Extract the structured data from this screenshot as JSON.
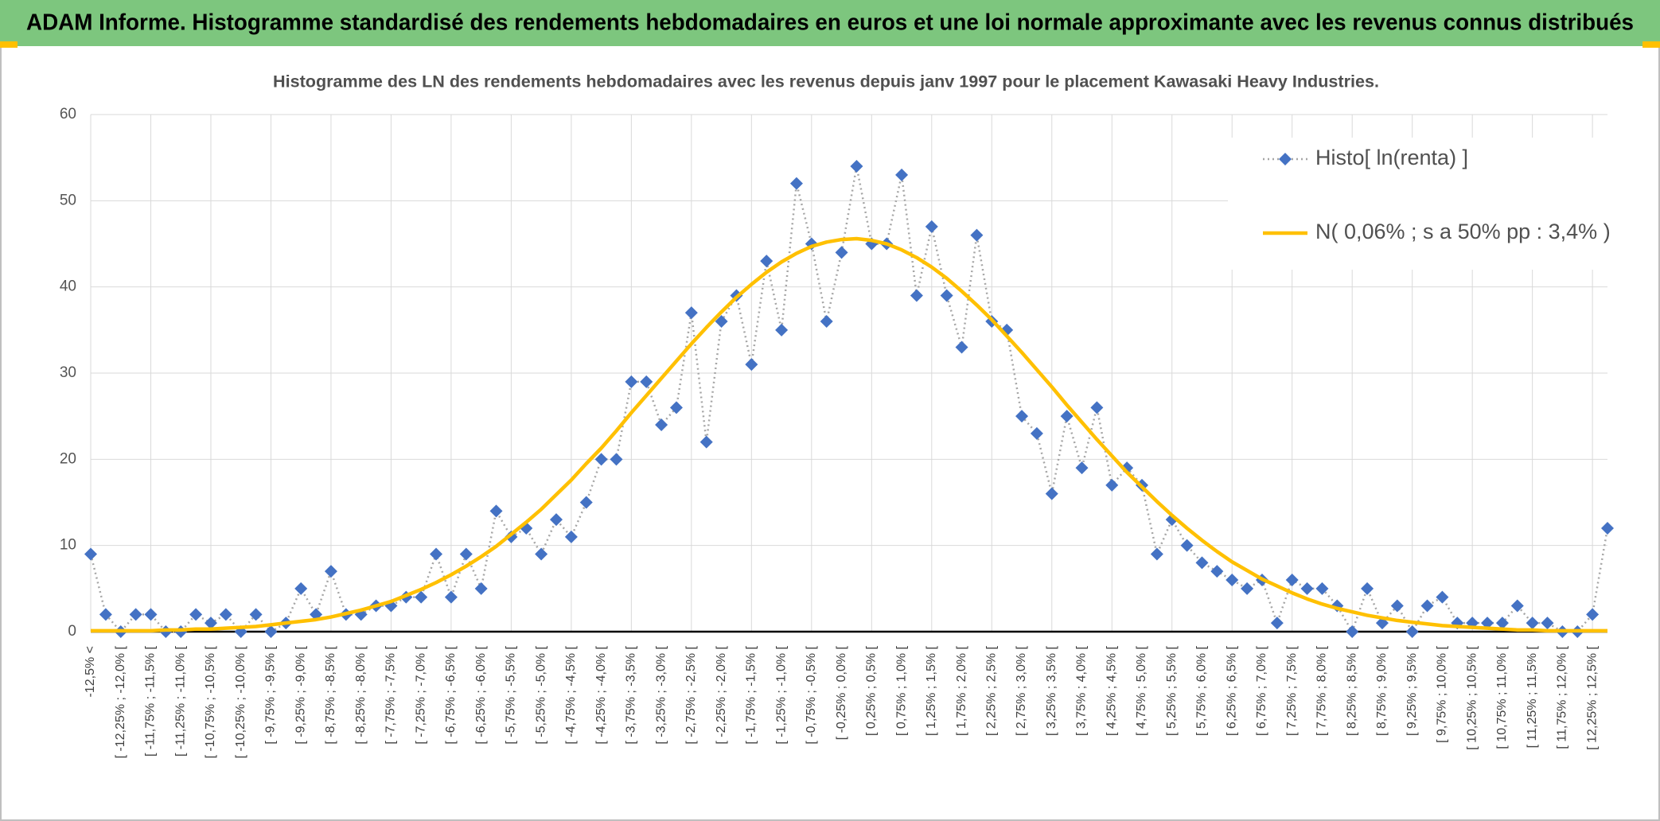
{
  "header": {
    "title": "ADAM Informe. Histogramme standardisé des rendements hebdomadaires en euros et une loi normale approximante avec les revenus connus distribués"
  },
  "chart_data": {
    "type": "line",
    "title": "Histogramme des LN des rendements hebdomadaires avec les revenus depuis janv 1997 pour le placement Kawasaki Heavy Industries.",
    "categories": [
      "-12,5% <",
      null,
      "[ -12,25% ; -12,0% [",
      null,
      "[ -11,75% ; -11,5% [",
      null,
      "[ -11,25% ; -11,0% [",
      null,
      "[ -10,75% ; -10,5% [",
      null,
      "[ -10,25% ; -10,0% [",
      null,
      "[ -9,75% ; -9,5% [",
      null,
      "[ -9,25% ; -9,0% [",
      null,
      "[ -8,75% ; -8,5% [",
      null,
      "[ -8,25% ; -8,0% [",
      null,
      "[ -7,75% ; -7,5% [",
      null,
      "[ -7,25% ; -7,0% [",
      null,
      "[ -6,75% ; -6,5% [",
      null,
      "[ -6,25% ; -6,0% [",
      null,
      "[ -5,75% ; -5,5% [",
      null,
      "[ -5,25% ; -5,0% [",
      null,
      "[ -4,75% ; -4,5% [",
      null,
      "[ -4,25% ; -4,0% [",
      null,
      "[ -3,75% ; -3,5% [",
      null,
      "[ -3,25% ; -3,0% [",
      null,
      "[ -2,75% ; -2,5% [",
      null,
      "[ -2,25% ; -2,0% [",
      null,
      "[ -1,75% ; -1,5% [",
      null,
      "[ -1,25% ; -1,0% [",
      null,
      "[ -0,75% ; -0,5% [",
      null,
      "[ -0,25% ; 0,0% [",
      null,
      "[ 0,25% ; 0,5% [",
      null,
      "[ 0,75% ; 1,0% [",
      null,
      "[ 1,25% ; 1,5% [",
      null,
      "[ 1,75% ; 2,0% [",
      null,
      "[ 2,25% ; 2,5% [",
      null,
      "[ 2,75% ; 3,0% [",
      null,
      "[ 3,25% ; 3,5% [",
      null,
      "[ 3,75% ; 4,0% [",
      null,
      "[ 4,25% ; 4,5% [",
      null,
      "[ 4,75% ; 5,0% [",
      null,
      "[ 5,25% ; 5,5% [",
      null,
      "[ 5,75% ; 6,0% [",
      null,
      "[ 6,25% ; 6,5% [",
      null,
      "[ 6,75% ; 7,0% [",
      null,
      "[ 7,25% ; 7,5% [",
      null,
      "[ 7,75% ; 8,0% [",
      null,
      "[ 8,25% ; 8,5% [",
      null,
      "[ 8,75% ; 9,0% [",
      null,
      "[ 9,25% ; 9,5% [",
      null,
      "[ 9,75% ; 10,0% [",
      null,
      "[ 10,25% ; 10,5% [",
      null,
      "[ 10,75% ; 11,0% [",
      null,
      "[ 11,25% ; 11,5% [",
      null,
      "[ 11,75% ; 12,0% [",
      null,
      "[ 12,25% ; 12,5% [",
      null
    ],
    "series": [
      {
        "name": "Histo[ ln(renta) ]",
        "color": "#4472c4",
        "line_color": "#a6a6a6",
        "marker": "diamond",
        "dash": "dotted",
        "values": [
          9,
          2,
          0,
          2,
          2,
          0,
          0,
          2,
          1,
          2,
          0,
          2,
          0,
          1,
          5,
          2,
          7,
          2,
          2,
          3,
          3,
          4,
          4,
          9,
          4,
          9,
          5,
          14,
          11,
          12,
          9,
          13,
          11,
          15,
          20,
          20,
          29,
          29,
          24,
          26,
          37,
          22,
          36,
          39,
          31,
          43,
          35,
          52,
          45,
          36,
          44,
          54,
          45,
          45,
          53,
          39,
          47,
          39,
          33,
          46,
          36,
          35,
          25,
          23,
          16,
          25,
          19,
          26,
          17,
          19,
          17,
          9,
          13,
          10,
          8,
          7,
          6,
          5,
          6,
          1,
          6,
          5,
          5,
          3,
          0,
          5,
          1,
          3,
          0,
          3,
          4,
          1,
          1,
          1,
          1,
          3,
          1,
          1,
          0,
          0,
          2,
          12
        ]
      },
      {
        "name": "N( 0,06% ; s a 50% pp : 3,4% )",
        "color": "#ffc000",
        "marker": "none",
        "dash": "solid",
        "values": [
          0.1,
          0.1,
          0.1,
          0.1,
          0.1,
          0.2,
          0.2,
          0.3,
          0.3,
          0.4,
          0.5,
          0.6,
          0.8,
          1.0,
          1.2,
          1.4,
          1.7,
          2.1,
          2.5,
          3.0,
          3.5,
          4.2,
          4.9,
          5.7,
          6.6,
          7.6,
          8.7,
          9.9,
          11.3,
          12.7,
          14.2,
          15.9,
          17.6,
          19.5,
          21.3,
          23.3,
          25.4,
          27.4,
          29.4,
          31.4,
          33.4,
          35.3,
          37.1,
          38.8,
          40.3,
          41.7,
          42.9,
          43.9,
          44.7,
          45.2,
          45.5,
          45.6,
          45.4,
          45.0,
          44.3,
          43.4,
          42.3,
          41.0,
          39.5,
          37.9,
          36.2,
          34.3,
          32.4,
          30.4,
          28.4,
          26.3,
          24.3,
          22.3,
          20.4,
          18.5,
          16.8,
          15.1,
          13.5,
          12.0,
          10.6,
          9.3,
          8.1,
          7.1,
          6.1,
          5.3,
          4.5,
          3.8,
          3.2,
          2.7,
          2.3,
          1.9,
          1.6,
          1.3,
          1.1,
          0.9,
          0.7,
          0.6,
          0.5,
          0.4,
          0.3,
          0.2,
          0.2,
          0.1,
          0.1,
          0.1,
          0.1,
          0.1
        ]
      }
    ],
    "ylim": [
      0,
      60
    ],
    "yticks": [
      0,
      10,
      20,
      30,
      40,
      50,
      60
    ],
    "grid": true,
    "legend": "top-right"
  }
}
